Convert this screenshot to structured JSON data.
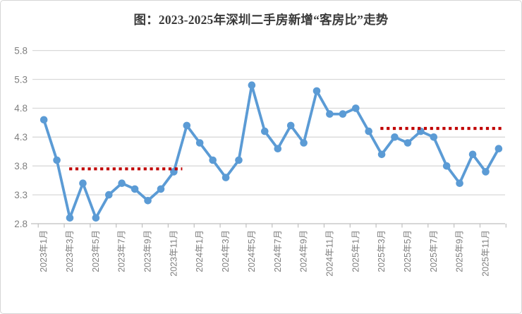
{
  "page": {
    "background": "#FFFFFF",
    "border_color": "#D6D6D6"
  },
  "chart_data": {
    "type": "line",
    "title": "图：2023-2025年深圳二手房新增“客房比”走势",
    "x": [
      "2023年1月",
      "2023年2月",
      "2023年3月",
      "2023年4月",
      "2023年5月",
      "2023年6月",
      "2023年7月",
      "2023年8月",
      "2023年9月",
      "2023年10月",
      "2023年11月",
      "2023年12月",
      "2024年1月",
      "2024年2月",
      "2024年3月",
      "2024年4月",
      "2024年5月",
      "2024年6月",
      "2024年7月",
      "2024年8月",
      "2024年9月",
      "2024年10月",
      "2024年11月",
      "2024年12月",
      "2025年1月",
      "2025年2月",
      "2025年3月",
      "2025年4月",
      "2025年5月",
      "2025年6月",
      "2025年7月",
      "2025年8月",
      "2025年9月",
      "2025年10月",
      "2025年11月",
      "2025年12月"
    ],
    "values": [
      4.6,
      3.9,
      2.9,
      3.5,
      2.9,
      3.3,
      3.5,
      3.4,
      3.2,
      3.4,
      3.7,
      4.5,
      4.2,
      3.9,
      3.6,
      3.9,
      5.2,
      4.4,
      4.1,
      4.5,
      4.2,
      5.1,
      4.7,
      4.7,
      4.8,
      4.4,
      4.0,
      4.3,
      4.2,
      4.4,
      4.3,
      3.8,
      3.5,
      4.0,
      3.7,
      4.1
    ],
    "x_tick_labels": [
      "2023年1月",
      "2023年3月",
      "2023年5月",
      "2023年7月",
      "2023年9月",
      "2023年11月",
      "2024年1月",
      "2024年3月",
      "2024年5月",
      "2024年7月",
      "2024年9月",
      "2024年11月",
      "2025年1月",
      "2025年3月",
      "2025年5月",
      "2025年7月",
      "2025年9月",
      "2025年11月"
    ],
    "x_label_every": 2,
    "y_ticks": [
      2.8,
      3.3,
      3.8,
      4.3,
      4.8,
      5.3,
      5.8
    ],
    "ylim": [
      2.8,
      5.8
    ],
    "xlabel": "",
    "ylabel": "",
    "grid": "horizontal",
    "legend": "none",
    "marker": "circle",
    "line_color": "#5B9BD5",
    "reference_lines": [
      {
        "value": 3.75,
        "style": "dotted",
        "color": "#C00000",
        "from_month": "2023年3月",
        "to_month": "2023年11月",
        "from_index": 1.95,
        "to_index": 10.65
      },
      {
        "value": 4.45,
        "style": "dotted",
        "color": "#C00000",
        "from_month": "2025年3月",
        "to_month": "2025年12月",
        "from_index": 25.9,
        "to_index": 35.25
      }
    ],
    "gridline_color": "#D9D9D9",
    "axis_color": "#BFBFBF",
    "label_color": "#7F7F7F"
  }
}
